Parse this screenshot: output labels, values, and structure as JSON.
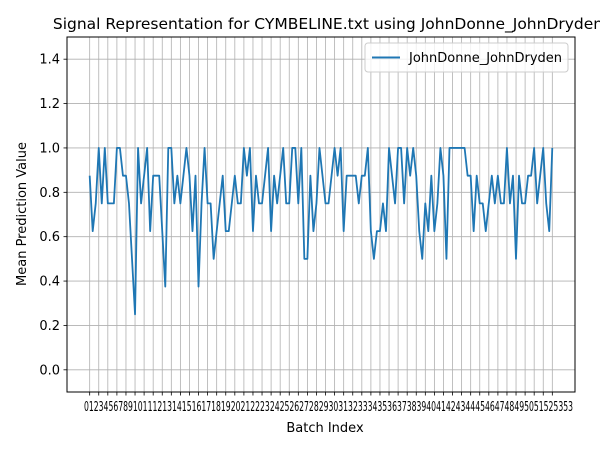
{
  "chart_data": {
    "type": "line",
    "title": "Signal Representation for CYMBELINE.txt using JohnDonne_JohnDryden",
    "xlabel": "Batch Index",
    "ylabel": "Mean Prediction Value",
    "xlim": [
      -2.5,
      53.5
    ],
    "ylim": [
      -0.1,
      1.5
    ],
    "yticks": [
      0.0,
      0.2,
      0.4,
      0.6,
      0.8,
      1.0,
      1.2,
      1.4
    ],
    "ytick_labels": [
      "0.0",
      "0.2",
      "0.4",
      "0.6",
      "0.8",
      "1.0",
      "1.2",
      "1.4"
    ],
    "xtick_labels_text": "0123456789101112131415161718192021222324252627282930313233343536373839404142434445464748495051525353",
    "grid": true,
    "legend_position": "top-right",
    "line_color": "#1f77b4",
    "series": [
      {
        "name": "JohnDonne_JohnDryden",
        "x_start": 0,
        "x_step": 0.3333,
        "values": [
          0.875,
          0.625,
          0.75,
          1.0,
          0.75,
          1.0,
          0.75,
          0.75,
          0.75,
          1.0,
          1.0,
          0.875,
          0.875,
          0.75,
          0.5,
          0.25,
          1.0,
          0.75,
          0.875,
          1.0,
          0.625,
          0.875,
          0.875,
          0.875,
          0.625,
          0.375,
          1.0,
          1.0,
          0.75,
          0.875,
          0.75,
          0.875,
          1.0,
          0.875,
          0.625,
          0.875,
          0.375,
          0.75,
          1.0,
          0.75,
          0.75,
          0.5,
          0.625,
          0.75,
          0.875,
          0.625,
          0.625,
          0.75,
          0.875,
          0.75,
          0.75,
          1.0,
          0.875,
          1.0,
          0.625,
          0.875,
          0.75,
          0.75,
          0.875,
          1.0,
          0.625,
          0.875,
          0.75,
          0.875,
          1.0,
          0.75,
          0.75,
          1.0,
          1.0,
          0.75,
          1.0,
          0.5,
          0.5,
          0.875,
          0.625,
          0.75,
          1.0,
          0.875,
          0.75,
          0.75,
          0.875,
          1.0,
          0.875,
          1.0,
          0.625,
          0.875,
          0.875,
          0.875,
          0.875,
          0.75,
          0.875,
          0.875,
          1.0,
          0.625,
          0.5,
          0.625,
          0.625,
          0.75,
          0.625,
          1.0,
          0.875,
          0.75,
          1.0,
          1.0,
          0.75,
          1.0,
          0.875,
          1.0,
          0.875,
          0.625,
          0.5,
          0.75,
          0.625,
          0.875,
          0.625,
          0.75,
          1.0,
          0.875,
          0.5,
          1.0,
          1.0,
          1.0,
          1.0,
          1.0,
          1.0,
          0.875,
          0.875,
          0.625,
          0.875,
          0.75,
          0.75,
          0.625,
          0.75,
          0.875,
          0.75,
          0.875,
          0.75,
          0.75,
          1.0,
          0.75,
          0.875,
          0.5,
          0.875,
          0.75,
          0.75,
          0.875,
          0.875,
          1.0,
          0.75,
          0.875,
          1.0,
          0.75,
          0.625,
          1.0
        ]
      }
    ]
  }
}
